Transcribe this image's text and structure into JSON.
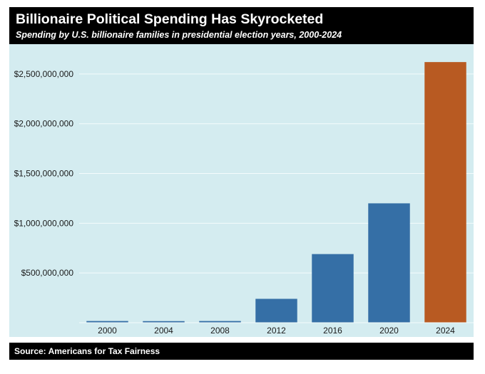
{
  "header": {
    "title": "Billionaire Political Spending Has Skyrocketed",
    "subtitle": "Spending by U.S. billionaire families in presidential election years, 2000-2024"
  },
  "footer": {
    "source": "Source: Americans for Tax Fairness"
  },
  "colors": {
    "panel_bg": "#d4ecf0",
    "grid": "#f4fbfc",
    "bar_default": "#356fa6",
    "bar_highlight": "#b85a22",
    "header_bg": "#000000",
    "header_text": "#ffffff"
  },
  "chart_data": {
    "type": "bar",
    "title": "Billionaire Political Spending Has Skyrocketed",
    "subtitle": "Spending by U.S. billionaire families in presidential election years, 2000-2024",
    "categories": [
      "2000",
      "2004",
      "2008",
      "2012",
      "2016",
      "2020",
      "2024"
    ],
    "values": [
      17000000,
      16000000,
      17000000,
      240000000,
      690000000,
      1200000000,
      2620000000
    ],
    "highlight_category": "2024",
    "xlabel": "",
    "ylabel": "",
    "ylim": [
      0,
      2800000000
    ],
    "yticks": [
      500000000,
      1000000000,
      1500000000,
      2000000000,
      2500000000
    ],
    "ytick_labels": [
      "$500,000,000",
      "$1,000,000,000",
      "$1,500,000,000",
      "$2,000,000,000",
      "$2,500,000,000"
    ],
    "grid": true,
    "legend": "none"
  }
}
